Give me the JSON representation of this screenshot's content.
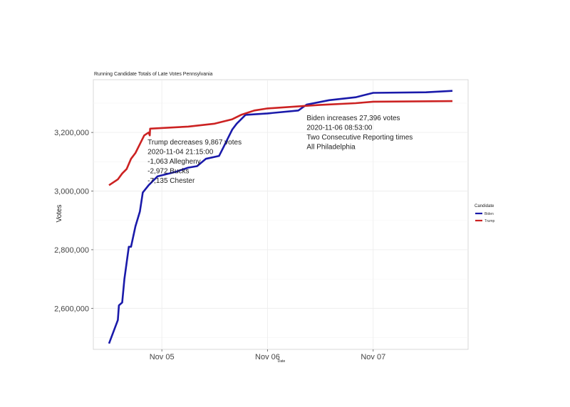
{
  "chart_data": {
    "type": "line",
    "title": "Running Candidate Totals of Late Votes Pennsylvania",
    "xlabel": "Date",
    "ylabel": "Votes",
    "x_range": [
      "2020-11-04 12:00",
      "2020-11-07 18:00"
    ],
    "ylim": [
      2460000,
      3380000
    ],
    "y_ticks": [
      2600000,
      2800000,
      3000000,
      3200000
    ],
    "y_tick_labels": [
      "2,600,000",
      "2,800,000",
      "3,000,000",
      "3,200,000"
    ],
    "x_ticks": [
      "2020-11-05 00:00",
      "2020-11-06 00:00",
      "2020-11-07 00:00"
    ],
    "x_tick_labels": [
      "Nov 05",
      "Nov 06",
      "Nov 07"
    ],
    "grid": true,
    "legend": {
      "title": "Candidate",
      "position": "right",
      "entries": [
        "Biden",
        "Trump"
      ]
    },
    "series": [
      {
        "name": "Biden",
        "color": "#1a1aaa",
        "points": [
          [
            "2020-11-04 12:00",
            2480000
          ],
          [
            "2020-11-04 13:00",
            2520000
          ],
          [
            "2020-11-04 14:00",
            2560000
          ],
          [
            "2020-11-04 14:15",
            2610000
          ],
          [
            "2020-11-04 15:00",
            2620000
          ],
          [
            "2020-11-04 15:30",
            2700000
          ],
          [
            "2020-11-04 16:30",
            2810000
          ],
          [
            "2020-11-04 17:00",
            2810000
          ],
          [
            "2020-11-04 18:00",
            2880000
          ],
          [
            "2020-11-04 19:00",
            2930000
          ],
          [
            "2020-11-04 19:40",
            2995000
          ],
          [
            "2020-11-04 21:00",
            3020000
          ],
          [
            "2020-11-04 23:00",
            3050000
          ],
          [
            "2020-11-05 03:00",
            3065000
          ],
          [
            "2020-11-05 06:00",
            3080000
          ],
          [
            "2020-11-05 08:00",
            3085000
          ],
          [
            "2020-11-05 10:00",
            3110000
          ],
          [
            "2020-11-05 13:00",
            3120000
          ],
          [
            "2020-11-05 14:00",
            3150000
          ],
          [
            "2020-11-05 15:00",
            3180000
          ],
          [
            "2020-11-05 16:00",
            3210000
          ],
          [
            "2020-11-05 17:00",
            3230000
          ],
          [
            "2020-11-05 19:00",
            3260000
          ],
          [
            "2020-11-06 00:00",
            3265000
          ],
          [
            "2020-11-06 07:00",
            3275000
          ],
          [
            "2020-11-06 08:53",
            3295000
          ],
          [
            "2020-11-06 14:00",
            3310000
          ],
          [
            "2020-11-06 20:00",
            3320000
          ],
          [
            "2020-11-07 00:00",
            3335000
          ],
          [
            "2020-11-07 12:00",
            3337000
          ],
          [
            "2020-11-07 18:00",
            3342000
          ]
        ]
      },
      {
        "name": "Trump",
        "color": "#cc2222",
        "points": [
          [
            "2020-11-04 12:00",
            3020000
          ],
          [
            "2020-11-04 14:00",
            3040000
          ],
          [
            "2020-11-04 15:00",
            3060000
          ],
          [
            "2020-11-04 16:00",
            3075000
          ],
          [
            "2020-11-04 17:00",
            3110000
          ],
          [
            "2020-11-04 18:00",
            3130000
          ],
          [
            "2020-11-04 19:00",
            3160000
          ],
          [
            "2020-11-04 20:00",
            3190000
          ],
          [
            "2020-11-04 21:00",
            3200000
          ],
          [
            "2020-11-04 21:15",
            3190000
          ],
          [
            "2020-11-04 21:20",
            3213000
          ],
          [
            "2020-11-05 06:00",
            3220000
          ],
          [
            "2020-11-05 12:00",
            3230000
          ],
          [
            "2020-11-05 16:00",
            3245000
          ],
          [
            "2020-11-05 18:00",
            3260000
          ],
          [
            "2020-11-05 21:00",
            3275000
          ],
          [
            "2020-11-06 00:00",
            3282000
          ],
          [
            "2020-11-06 08:00",
            3290000
          ],
          [
            "2020-11-06 12:00",
            3294000
          ],
          [
            "2020-11-06 20:00",
            3300000
          ],
          [
            "2020-11-07 00:00",
            3305000
          ],
          [
            "2020-11-07 18:00",
            3307000
          ]
        ]
      }
    ],
    "annotations": [
      {
        "anchor": [
          "2020-11-04 21:15",
          3225000
        ],
        "lines": [
          "Trump decreases 9,867 votes",
          "2020-11-04 21:15:00",
          "-1,063 Allegheny",
          "-2,972 Bucks",
          "-7,135 Chester"
        ]
      },
      {
        "anchor": [
          "2020-11-06 08:53",
          3270000
        ],
        "lines": [
          "Biden increases 27,396 votes",
          "2020-11-06 08:53:00",
          "Two Consecutive Reporting times",
          "All Philadelphia"
        ]
      }
    ]
  }
}
